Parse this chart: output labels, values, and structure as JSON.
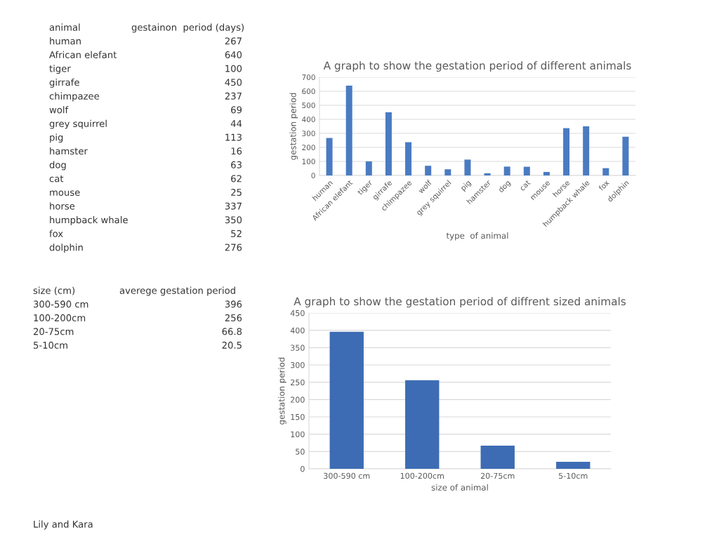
{
  "chart_data": [
    {
      "type": "other",
      "annotations": [
        "animal",
        "gestainon  period (days)",
        "human",
        "267",
        "African elefant",
        "640",
        "tiger",
        "100",
        "girrafe",
        "450",
        "chimpazee",
        "237",
        "wolf",
        "69",
        "grey squirrel",
        "44",
        "pig",
        "113",
        "hamster",
        "16",
        "dog",
        "63",
        "cat",
        "62",
        "mouse",
        "25",
        "horse",
        "337",
        "humpback whale",
        "350",
        "fox",
        "52",
        "dolphin",
        "276"
      ]
    },
    {
      "type": "bar",
      "title": "A graph to show the gestation period of different animals",
      "xlabel": "type  of animal",
      "ylabel": "gestation period",
      "categories": [
        "human",
        "African elefant",
        "tiger",
        "girrafe",
        "chimpazee",
        "wolf",
        "grey squirrel",
        "pig",
        "hamster",
        "dog",
        "cat",
        "mouse",
        "horse",
        "humpback whale",
        "fox",
        "dolphin"
      ],
      "values": [
        267,
        640,
        100,
        450,
        237,
        69,
        44,
        113,
        16,
        63,
        62,
        25,
        337,
        350,
        52,
        276
      ],
      "color": "#4a7bc2",
      "ylim": [
        0,
        700
      ],
      "yticks": [
        0,
        100,
        200,
        300,
        400,
        500,
        600,
        700
      ],
      "grid": "y"
    },
    {
      "type": "other",
      "annotations": [
        "size (cm)",
        "averege gestation period",
        "300-590 cm",
        "396",
        "100-200cm",
        "256",
        "20-75cm",
        "66.8",
        "5-10cm",
        "20.5"
      ]
    },
    {
      "type": "bar",
      "title": "A graph to show the gestation period of diffrent sized animals",
      "xlabel": "size of animal",
      "ylabel": "gestation period",
      "categories": [
        "300-590 cm",
        "100-200cm",
        "20-75cm",
        "5-10cm"
      ],
      "values": [
        396,
        256,
        66.8,
        20.5
      ],
      "color": "#3d6cb4",
      "ylim": [
        0,
        450
      ],
      "yticks": [
        0,
        50,
        100,
        150,
        200,
        250,
        300,
        350,
        400,
        450
      ],
      "grid": "y"
    },
    {
      "type": "other",
      "annotations": [
        "Lily and Kara"
      ]
    }
  ]
}
